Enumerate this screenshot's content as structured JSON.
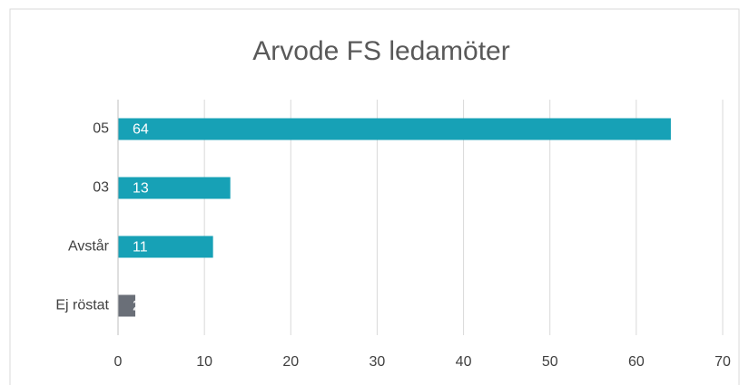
{
  "chart_data": {
    "type": "barh",
    "title": "Arvode FS ledamöter",
    "categories": [
      "05",
      "03",
      "Avstår",
      "Ej röstat"
    ],
    "values": [
      64,
      13,
      11,
      2
    ],
    "colors": [
      "#17a1b6",
      "#17a1b6",
      "#17a1b6",
      "#6a6f78"
    ],
    "xlim": [
      0,
      70
    ],
    "xticks": [
      0,
      10,
      20,
      30,
      40,
      50,
      60,
      70
    ],
    "grid": true
  }
}
